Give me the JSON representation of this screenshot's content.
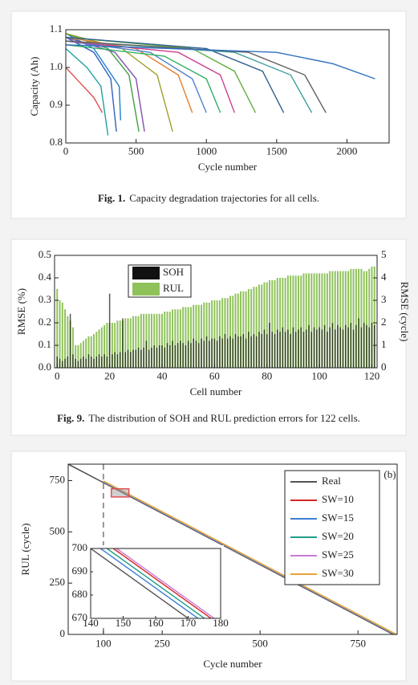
{
  "chart_data": [
    {
      "type": "line",
      "xlabel": "Cycle number",
      "ylabel": "Capacity (Ah)",
      "caption_label": "Fig. 1.",
      "caption": "Capacity degradation trajectories for all cells.",
      "xlim": [
        0,
        2300
      ],
      "xticks": [
        0,
        500,
        1000,
        1500,
        2000
      ],
      "ylim": [
        0.8,
        1.1
      ],
      "yticks": [
        0.8,
        0.9,
        {
          "value": 1,
          "label": "1.0"
        },
        1.1
      ],
      "series": [
        {
          "color": "#e05050",
          "x": [
            0,
            100,
            200,
            260
          ],
          "values": [
            1.0,
            0.96,
            0.92,
            0.88
          ]
        },
        {
          "color": "#20a0a0",
          "x": [
            0,
            150,
            250,
            300
          ],
          "values": [
            1.05,
            1.0,
            0.95,
            0.82
          ]
        },
        {
          "color": "#3060c0",
          "x": [
            0,
            200,
            320,
            360
          ],
          "values": [
            1.08,
            1.04,
            0.97,
            0.83
          ]
        },
        {
          "color": "#2080d0",
          "x": [
            0,
            200,
            380,
            390
          ],
          "values": [
            1.09,
            1.05,
            0.95,
            0.86
          ]
        },
        {
          "color": "#40a040",
          "x": [
            0,
            300,
            450,
            520
          ],
          "values": [
            1.09,
            1.05,
            0.98,
            0.83
          ]
        },
        {
          "color": "#8050b0",
          "x": [
            0,
            350,
            500,
            560
          ],
          "values": [
            1.08,
            1.04,
            0.97,
            0.83
          ]
        },
        {
          "color": "#a0a030",
          "x": [
            0,
            400,
            650,
            760
          ],
          "values": [
            1.09,
            1.05,
            0.98,
            0.83
          ]
        },
        {
          "color": "#e08030",
          "x": [
            0,
            500,
            800,
            900
          ],
          "values": [
            1.08,
            1.05,
            0.98,
            0.88
          ]
        },
        {
          "color": "#5080d0",
          "x": [
            0,
            600,
            900,
            1000
          ],
          "values": [
            1.07,
            1.04,
            0.97,
            0.88
          ]
        },
        {
          "color": "#30b060",
          "x": [
            0,
            700,
            1000,
            1100
          ],
          "values": [
            1.06,
            1.03,
            0.97,
            0.88
          ]
        },
        {
          "color": "#d04090",
          "x": [
            0,
            800,
            1100,
            1200
          ],
          "values": [
            1.07,
            1.04,
            0.98,
            0.88
          ]
        },
        {
          "color": "#60b040",
          "x": [
            0,
            900,
            1200,
            1350
          ],
          "values": [
            1.08,
            1.05,
            0.99,
            0.88
          ]
        },
        {
          "color": "#306090",
          "x": [
            0,
            1000,
            1400,
            1550
          ],
          "values": [
            1.08,
            1.05,
            0.99,
            0.88
          ]
        },
        {
          "color": "#40a0a0",
          "x": [
            0,
            1200,
            1600,
            1750
          ],
          "values": [
            1.07,
            1.04,
            0.98,
            0.88
          ]
        },
        {
          "color": "#606060",
          "x": [
            0,
            1300,
            1700,
            1850
          ],
          "values": [
            1.07,
            1.04,
            0.98,
            0.88
          ]
        },
        {
          "color": "#3070c0",
          "x": [
            0,
            1500,
            1900,
            2200
          ],
          "values": [
            1.06,
            1.04,
            1.01,
            0.97
          ]
        }
      ]
    },
    {
      "type": "bar",
      "xlabel": "Cell number",
      "ylabel": "RMSE (%)",
      "y2label": "RMSE (cycle)",
      "caption_label": "Fig. 9.",
      "caption": "The distribution of SOH and RUL prediction errors for 122 cells.",
      "xlim": [
        -1,
        122
      ],
      "xticks": [
        0,
        20,
        40,
        60,
        80,
        100,
        120
      ],
      "ylim": [
        0,
        0.5
      ],
      "yticks": [
        {
          "value": 0,
          "label": "0.0"
        },
        0.1,
        0.2,
        0.3,
        0.4,
        0.5
      ],
      "y2lim": [
        0,
        5
      ],
      "y2ticks": [
        0,
        1,
        2,
        3,
        4,
        5
      ],
      "x": [
        0,
        1,
        2,
        3,
        4,
        5,
        6,
        7,
        8,
        9,
        10,
        11,
        12,
        13,
        14,
        15,
        16,
        17,
        18,
        19,
        20,
        21,
        22,
        23,
        24,
        25,
        26,
        27,
        28,
        29,
        30,
        31,
        32,
        33,
        34,
        35,
        36,
        37,
        38,
        39,
        40,
        41,
        42,
        43,
        44,
        45,
        46,
        47,
        48,
        49,
        50,
        51,
        52,
        53,
        54,
        55,
        56,
        57,
        58,
        59,
        60,
        61,
        62,
        63,
        64,
        65,
        66,
        67,
        68,
        69,
        70,
        71,
        72,
        73,
        74,
        75,
        76,
        77,
        78,
        79,
        80,
        81,
        82,
        83,
        84,
        85,
        86,
        87,
        88,
        89,
        90,
        91,
        92,
        93,
        94,
        95,
        96,
        97,
        98,
        99,
        100,
        101,
        102,
        103,
        104,
        105,
        106,
        107,
        108,
        109,
        110,
        111,
        112,
        113,
        114,
        115,
        116,
        117,
        118,
        119,
        120,
        121
      ],
      "series": [
        {
          "name": "RUL",
          "color": "#8fc25a",
          "axis": "y2",
          "values": [
            3.5,
            3.0,
            2.9,
            2.6,
            2.3,
            2.1,
            1.8,
            1.0,
            1.0,
            1.1,
            1.2,
            1.3,
            1.4,
            1.4,
            1.5,
            1.6,
            1.7,
            1.8,
            1.9,
            2.0,
            2.0,
            2.0,
            2.0,
            2.1,
            2.1,
            2.1,
            2.2,
            2.2,
            2.2,
            2.3,
            2.3,
            2.3,
            2.4,
            2.4,
            2.4,
            2.4,
            2.4,
            2.4,
            2.4,
            2.4,
            2.4,
            2.5,
            2.5,
            2.5,
            2.6,
            2.6,
            2.6,
            2.6,
            2.7,
            2.7,
            2.7,
            2.7,
            2.8,
            2.8,
            2.8,
            2.8,
            2.9,
            2.9,
            2.9,
            3.0,
            3.0,
            3.0,
            3.0,
            3.1,
            3.1,
            3.1,
            3.2,
            3.2,
            3.3,
            3.3,
            3.4,
            3.4,
            3.4,
            3.5,
            3.5,
            3.6,
            3.6,
            3.7,
            3.7,
            3.8,
            3.8,
            3.9,
            3.9,
            3.9,
            4.0,
            4.0,
            4.0,
            4.0,
            4.1,
            4.1,
            4.1,
            4.1,
            4.1,
            4.1,
            4.2,
            4.2,
            4.2,
            4.2,
            4.2,
            4.2,
            4.2,
            4.2,
            4.2,
            4.2,
            4.3,
            4.3,
            4.3,
            4.3,
            4.3,
            4.3,
            4.3,
            4.3,
            4.4,
            4.4,
            4.4,
            4.4,
            4.4,
            4.3,
            4.3,
            4.4,
            4.5,
            4.5
          ]
        },
        {
          "name": "SOH",
          "color": "#111111",
          "values": [
            0.05,
            0.04,
            0.03,
            0.04,
            0.05,
            0.24,
            0.06,
            0.04,
            0.03,
            0.04,
            0.05,
            0.04,
            0.06,
            0.05,
            0.04,
            0.05,
            0.06,
            0.05,
            0.06,
            0.05,
            0.33,
            0.06,
            0.07,
            0.06,
            0.07,
            0.22,
            0.07,
            0.08,
            0.07,
            0.08,
            0.08,
            0.09,
            0.08,
            0.09,
            0.12,
            0.08,
            0.09,
            0.1,
            0.09,
            0.1,
            0.1,
            0.09,
            0.11,
            0.1,
            0.12,
            0.1,
            0.11,
            0.12,
            0.11,
            0.1,
            0.12,
            0.11,
            0.13,
            0.12,
            0.11,
            0.13,
            0.12,
            0.14,
            0.12,
            0.13,
            0.13,
            0.12,
            0.14,
            0.13,
            0.15,
            0.13,
            0.14,
            0.13,
            0.15,
            0.14,
            0.14,
            0.15,
            0.13,
            0.16,
            0.14,
            0.15,
            0.14,
            0.16,
            0.15,
            0.17,
            0.15,
            0.2,
            0.16,
            0.15,
            0.17,
            0.16,
            0.18,
            0.16,
            0.17,
            0.15,
            0.18,
            0.16,
            0.17,
            0.18,
            0.16,
            0.17,
            0.19,
            0.16,
            0.18,
            0.17,
            0.18,
            0.17,
            0.19,
            0.16,
            0.18,
            0.2,
            0.17,
            0.19,
            0.18,
            0.17,
            0.19,
            0.18,
            0.2,
            0.17,
            0.19,
            0.22,
            0.18,
            0.2,
            0.19,
            0.18,
            0.2,
            0.19
          ]
        }
      ]
    },
    {
      "type": "line",
      "xlabel": "Cycle number",
      "ylabel": "RUL (cycle)",
      "panel_label": "(b)",
      "xlim": [
        10,
        850
      ],
      "xticks": [
        100,
        250,
        500,
        750
      ],
      "ylim": [
        0,
        830
      ],
      "yticks": [
        0,
        250,
        500,
        750
      ],
      "series": [
        {
          "name": "Real",
          "color": "#555555",
          "x": [
            10,
            840
          ],
          "values": [
            830,
            0
          ]
        },
        {
          "name": "SW=10",
          "color": "#d62728",
          "x": [
            100,
            842
          ],
          "values": [
            742,
            0
          ]
        },
        {
          "name": "SW=15",
          "color": "#3a7fd5",
          "x": [
            100,
            843
          ],
          "values": [
            743,
            0
          ]
        },
        {
          "name": "SW=20",
          "color": "#1f9e89",
          "x": [
            100,
            845
          ],
          "values": [
            745,
            0
          ]
        },
        {
          "name": "SW=25",
          "color": "#c77cd8",
          "x": [
            100,
            847
          ],
          "values": [
            747,
            0
          ]
        },
        {
          "name": "SW=30",
          "color": "#e8a33a",
          "x": [
            100,
            848
          ],
          "values": [
            748,
            0
          ]
        }
      ]
    },
    {
      "type": "line",
      "xlim": [
        140,
        180
      ],
      "xticks": [
        140,
        150,
        160,
        170,
        180
      ],
      "ylim": [
        670,
        700
      ],
      "yticks": [
        670,
        680,
        690,
        700
      ],
      "series": [
        {
          "color": "#555555",
          "x": [
            140,
            170
          ],
          "values": [
            700,
            670
          ]
        },
        {
          "color": "#3a7fd5",
          "x": [
            143,
            173
          ],
          "values": [
            700,
            670
          ]
        },
        {
          "color": "#1f9e89",
          "x": [
            145,
            175
          ],
          "values": [
            700,
            670
          ]
        },
        {
          "color": "#d62728",
          "x": [
            147,
            177
          ],
          "values": [
            700,
            670
          ]
        },
        {
          "color": "#c77cd8",
          "x": [
            148,
            178
          ],
          "values": [
            700,
            670
          ]
        }
      ]
    }
  ]
}
